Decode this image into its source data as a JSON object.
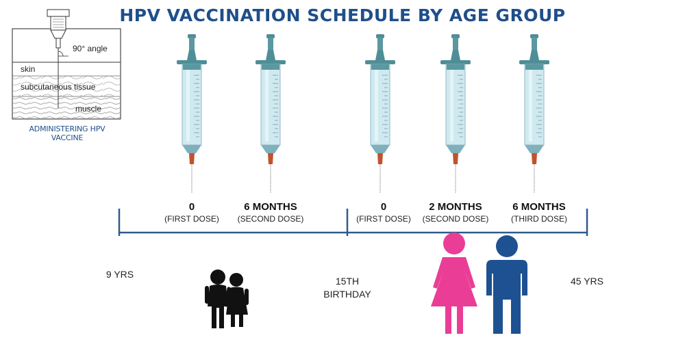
{
  "title": "HPV VACCINATION SCHEDULE BY AGE GROUP",
  "injection_diagram": {
    "caption": "ADMINISTERING HPV VACCINE",
    "angle_label": "90° angle",
    "layer_skin": "skin",
    "layer_subcutaneous": "subcutaneous tissue",
    "layer_muscle": "muscle"
  },
  "timeline": {
    "start_label": "9 YRS",
    "middle_label_line1": "15TH",
    "middle_label_line2": "BIRTHDAY",
    "end_label": "45 YRS"
  },
  "group_under_15": {
    "doses": [
      {
        "time": "0",
        "desc": "(FIRST DOSE)"
      },
      {
        "time": "6 MONTHS",
        "desc": "(SECOND DOSE)"
      }
    ]
  },
  "group_15_to_45": {
    "doses": [
      {
        "time": "0",
        "desc": "(FIRST DOSE)"
      },
      {
        "time": "2 MONTHS",
        "desc": "(SECOND DOSE)"
      },
      {
        "time": "6 MONTHS",
        "desc": "(THIRD DOSE)"
      }
    ]
  },
  "colors": {
    "title": "#1f4f8a",
    "timeline": "#2e5a8c",
    "syringe_barrel": "#cfe9f0",
    "syringe_plunger": "#4f8e96",
    "needle_hub": "#c0532e",
    "female_figure": "#ea3d96",
    "male_figure": "#1d5191",
    "children_figure": "#111111"
  }
}
